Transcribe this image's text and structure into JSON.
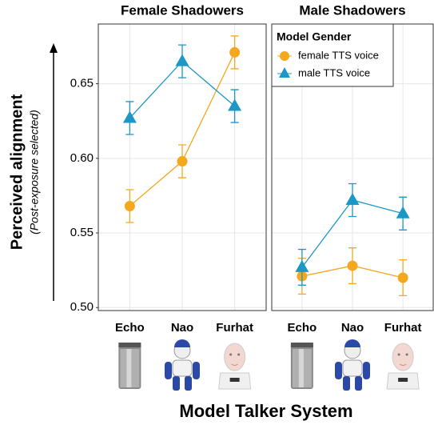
{
  "chart_data": [
    {
      "type": "line",
      "title": "Female Shadowers",
      "categories": [
        "Echo",
        "Nao",
        "Furhat"
      ],
      "series": [
        {
          "name": "female TTS voice",
          "color": "#f4a81d",
          "marker": "circle",
          "values": [
            0.568,
            0.598,
            0.671
          ],
          "errors": [
            0.011,
            0.011,
            0.011
          ]
        },
        {
          "name": "male TTS voice",
          "color": "#1b98c6",
          "marker": "triangle",
          "values": [
            0.627,
            0.665,
            0.635
          ],
          "errors": [
            0.011,
            0.011,
            0.011
          ]
        }
      ],
      "ylim": [
        0.498,
        0.69
      ],
      "yticks": [
        {
          "value": 0.5,
          "label": "0.50"
        },
        0.55,
        {
          "value": 0.6,
          "label": "0.60"
        },
        0.65
      ],
      "grid": true
    },
    {
      "type": "line",
      "title": "Male Shadowers",
      "categories": [
        "Echo",
        "Nao",
        "Furhat"
      ],
      "series": [
        {
          "name": "female TTS voice",
          "color": "#f4a81d",
          "marker": "circle",
          "values": [
            0.521,
            0.528,
            0.52
          ],
          "errors": [
            0.012,
            0.012,
            0.012
          ]
        },
        {
          "name": "male TTS voice",
          "color": "#1b98c6",
          "marker": "triangle",
          "values": [
            0.527,
            0.572,
            0.563
          ],
          "errors": [
            0.012,
            0.011,
            0.011
          ]
        }
      ],
      "ylim": [
        0.498,
        0.69
      ],
      "grid": true
    }
  ],
  "y_label": "Perceived alignment",
  "y_sublabel": "(Post-exposure selected)",
  "x_label": "Model Talker System",
  "legend_title": "Model Gender"
}
